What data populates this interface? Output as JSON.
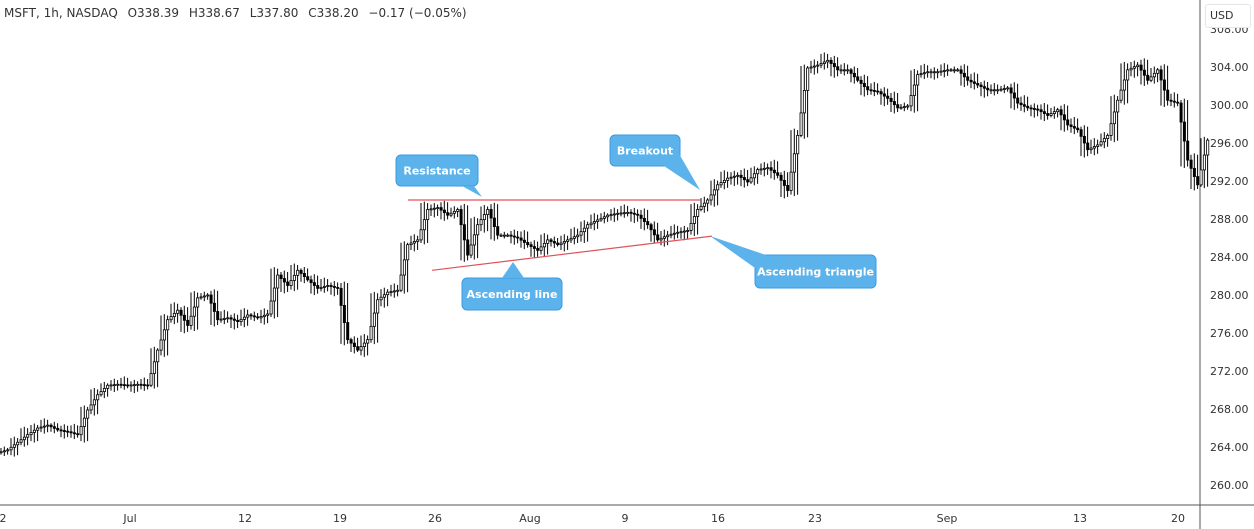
{
  "header": {
    "symbol": "MSFT, 1h, NASDAQ",
    "open": "O338.39",
    "high": "H338.67",
    "low": "L337.80",
    "close": "C338.20",
    "change": "−0.17 (−0.05%)",
    "currency": "USD"
  },
  "chart_data": {
    "type": "candlestick",
    "ylim": [
      258,
      308
    ],
    "yticks": [
      "308.00",
      "304.00",
      "300.00",
      "296.00",
      "292.00",
      "288.00",
      "284.00",
      "280.00",
      "276.00",
      "272.00",
      "268.00",
      "264.00",
      "260.00"
    ],
    "xticks": [
      "2",
      "Jul",
      "12",
      "19",
      "26",
      "Aug",
      "9",
      "16",
      "23",
      "Sep",
      "13",
      "20"
    ],
    "grid": false,
    "colors": {
      "candle": "#000000",
      "trendline": "#e0525a",
      "callout": "#5cb3ec",
      "callout_border": "#3a9be0"
    },
    "closes": [
      263.7,
      264.5,
      265.3,
      266,
      266.3,
      265.8,
      265.6,
      265.3,
      267.9,
      269.5,
      270.5,
      270.6,
      270.5,
      270.6,
      270.5,
      274.2,
      277.4,
      278.4,
      276.8,
      279.7,
      280,
      277.4,
      277.6,
      277.2,
      277.9,
      277.6,
      278,
      282.1,
      281,
      282.6,
      281.6,
      280.7,
      281,
      280.7,
      275.3,
      274.2,
      275.3,
      279.5,
      280.3,
      280.5,
      285.3,
      285.8,
      289,
      289.2,
      288.4,
      289,
      284.2,
      287.4,
      289,
      286.3,
      286.3,
      286,
      285.3,
      284.7,
      285.8,
      285.3,
      285.8,
      286.3,
      287.4,
      287.9,
      288.4,
      288.6,
      288.7,
      288.4,
      287.4,
      285.8,
      286.3,
      286.6,
      286.8,
      289,
      290,
      291.6,
      292.3,
      292.6,
      291.9,
      293.2,
      293.4,
      292.6,
      291,
      296.8,
      303.9,
      304.2,
      304.7,
      303.7,
      303.7,
      302.6,
      301.6,
      301.4,
      300.7,
      299.7,
      299.9,
      303.2,
      303.5,
      303.5,
      303.7,
      303.7,
      302.6,
      302.1,
      301.6,
      301.6,
      301.8,
      300.2,
      299.7,
      299.5,
      298.9,
      299.5,
      297.9,
      297.4,
      295.3,
      295.8,
      296.8,
      300.5,
      303.7,
      304.2,
      302.6,
      303.7,
      300.5,
      300.2,
      294.2,
      291.6,
      296.3
    ],
    "trendlines": [
      {
        "name": "resistance",
        "from": [
          40.8,
          290.0
        ],
        "to": [
          70,
          290.0
        ]
      },
      {
        "name": "ascending",
        "from": [
          43.2,
          282.6
        ],
        "to": [
          71.2,
          286.2
        ]
      }
    ],
    "annotations": [
      "Resistance",
      "Breakout",
      "Ascending line",
      "Ascending triangle"
    ]
  }
}
